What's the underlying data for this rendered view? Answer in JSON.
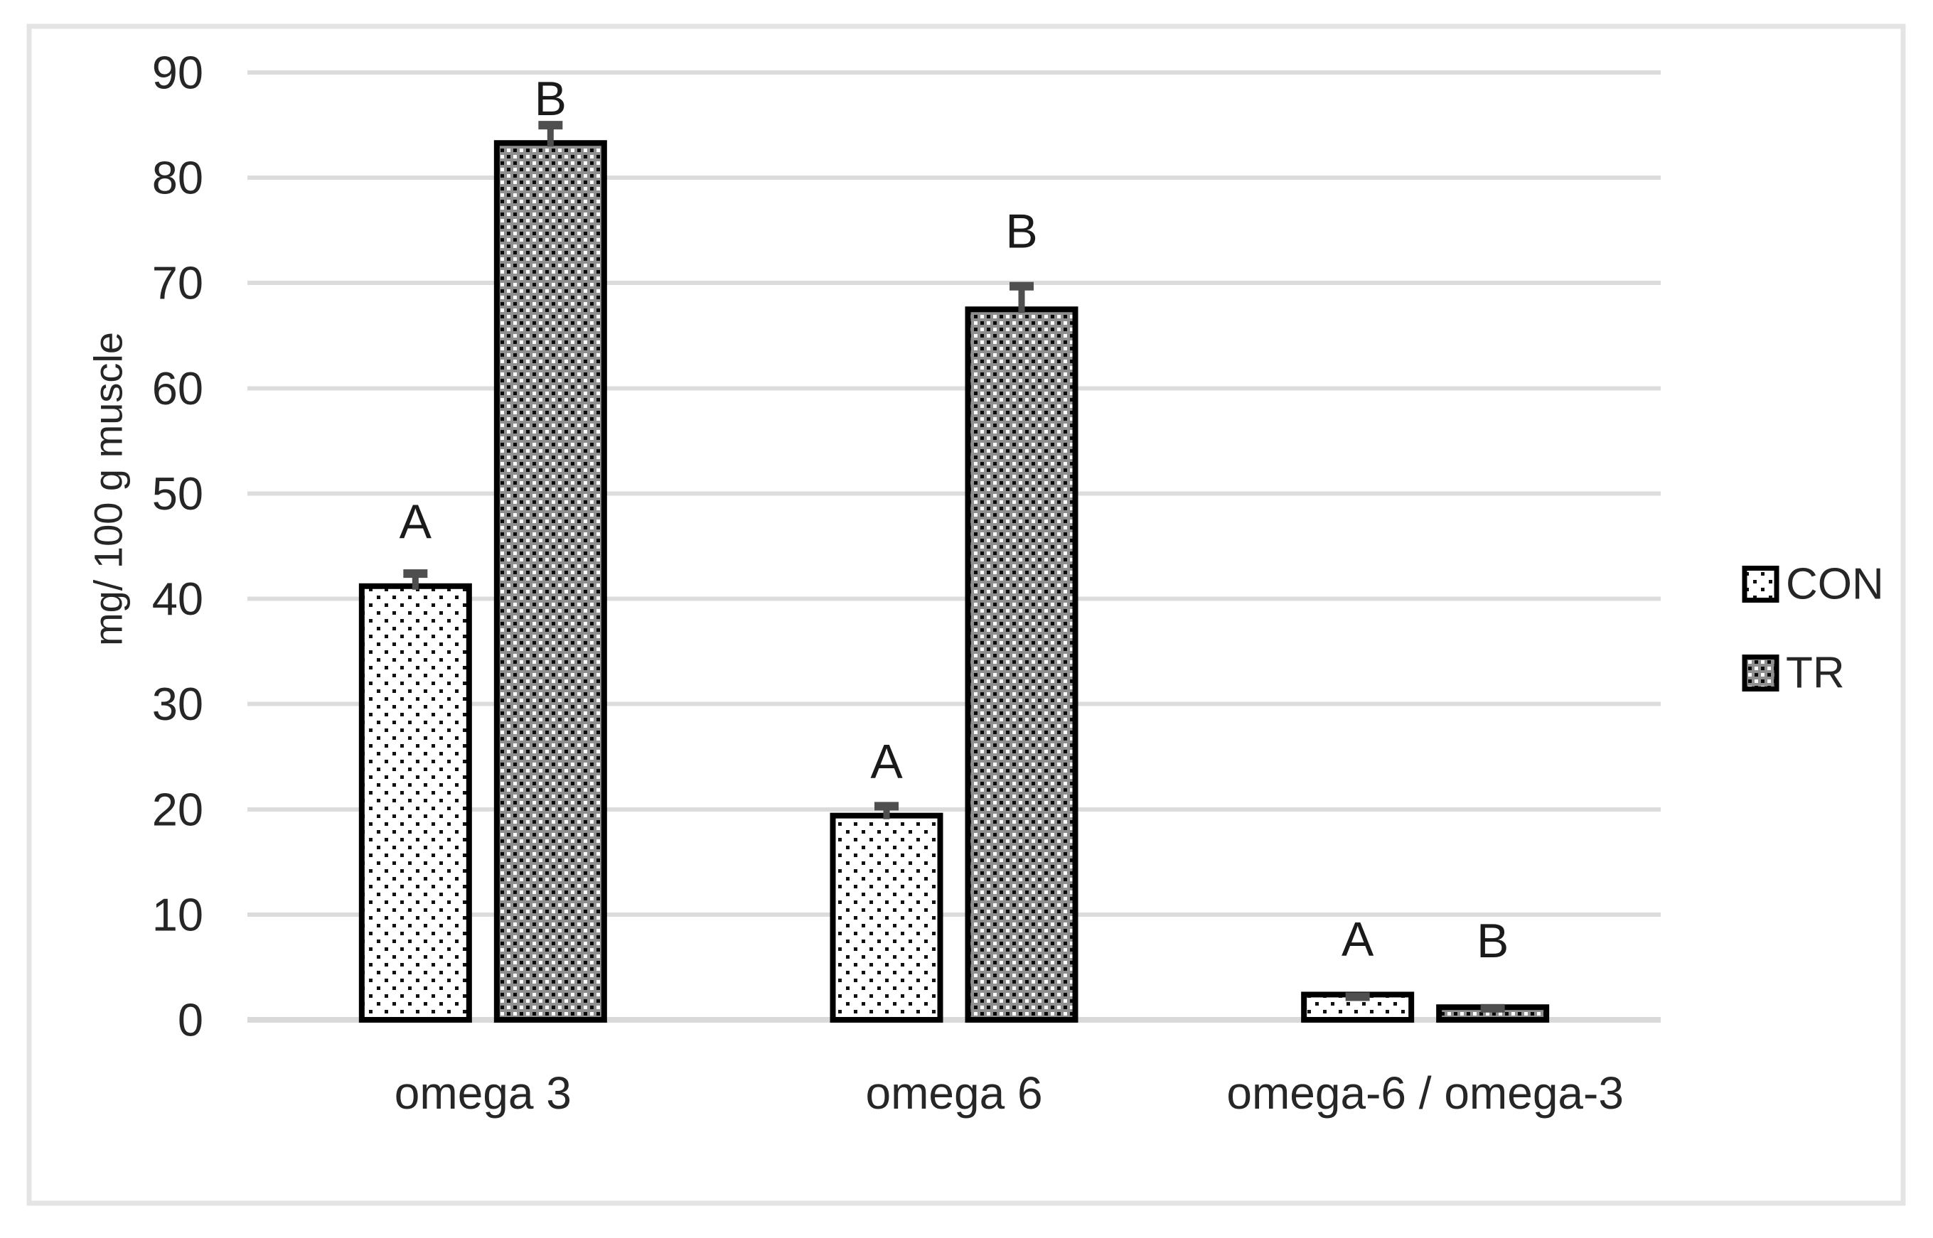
{
  "chart_data": {
    "type": "bar",
    "title": "",
    "categories": [
      "omega 3",
      "omega 6",
      "omega-6 / omega-3"
    ],
    "series": [
      {
        "name": "CON",
        "pattern": "sparse-dots",
        "values": [
          41.2,
          19.4,
          2.4
        ],
        "errors_up": [
          1.6,
          1.3,
          0.2
        ],
        "sig_letters": [
          "A",
          "A",
          "A"
        ]
      },
      {
        "name": "TR",
        "pattern": "dense-dot-grid",
        "values": [
          83.3,
          67.5,
          1.2
        ],
        "errors_up": [
          2.1,
          2.6,
          0.3
        ],
        "sig_letters": [
          "B",
          "B",
          "B"
        ]
      }
    ],
    "xlabel": "",
    "ylabel": "mg/ 100 g muscle",
    "ylim": [
      0,
      90
    ],
    "yticks": [
      0,
      10,
      20,
      30,
      40,
      50,
      60,
      70,
      80,
      90
    ],
    "grid": true,
    "legend_position": "right",
    "colors": {
      "grid_line": "#dcdcdc",
      "axis_line": "#d9d9d9",
      "bar_stroke": "#000000",
      "con_fill_bg": "#ffffff",
      "con_dot": "#111111",
      "tr_fill_bg": "#8f8f8f",
      "tr_dot_light": "#ffffff",
      "tr_dot_dark": "#0a0a0a",
      "error_bar": "#4f4f4f",
      "text": "#262626",
      "sig_letter": "#1a1a1a",
      "figure_border": "#e4e4e4",
      "background": "#ffffff"
    }
  }
}
